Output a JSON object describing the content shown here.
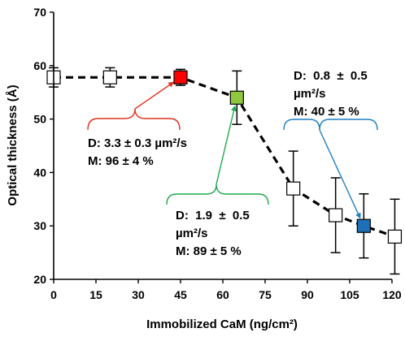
{
  "chart_data": {
    "type": "scatter",
    "title": "",
    "xlabel": "Immobilized CaM (ng/cm²)",
    "ylabel": "Optical thickness (Å)",
    "xlim": [
      0,
      120
    ],
    "ylim": [
      20,
      70
    ],
    "xticks": [
      0,
      15,
      30,
      45,
      60,
      75,
      90,
      105,
      120
    ],
    "yticks": [
      20,
      30,
      40,
      50,
      60,
      70
    ],
    "grid": false,
    "legend": "none",
    "series": [
      {
        "points": [
          {
            "x": 0,
            "y": 57.8,
            "err": 1.8,
            "fill": "#ffffff"
          },
          {
            "x": 20,
            "y": 57.8,
            "err": 1.8,
            "fill": "#ffffff"
          },
          {
            "x": 45,
            "y": 57.8,
            "err": 1.5,
            "fill": "#ff0000"
          },
          {
            "x": 65,
            "y": 54.0,
            "err": 5.0,
            "fill": "#8fc840"
          },
          {
            "x": 85,
            "y": 37.0,
            "err": 7.0,
            "fill": "#ffffff"
          },
          {
            "x": 100,
            "y": 32.0,
            "err": 7.0,
            "fill": "#ffffff"
          },
          {
            "x": 110,
            "y": 30.0,
            "err": 6.0,
            "fill": "#1f6fb8"
          },
          {
            "x": 121,
            "y": 28.0,
            "err": 7.0,
            "fill": "#ffffff"
          }
        ]
      }
    ],
    "annotations": [
      {
        "lines": [
          "D: 3.3 ± 0.3 µm²/s",
          "M: 96 ± 4 %"
        ],
        "color": "#e0331f"
      },
      {
        "lines": [
          "D:  1.9  ±  0.5",
          "µm²/s",
          "M: 89 ± 5 %"
        ],
        "color": "#1fa84f"
      },
      {
        "lines": [
          "D:  0.8  ±  0.5",
          "µm²/s",
          "M: 40 ± 5 %"
        ],
        "color": "#1f7fc0"
      }
    ]
  }
}
